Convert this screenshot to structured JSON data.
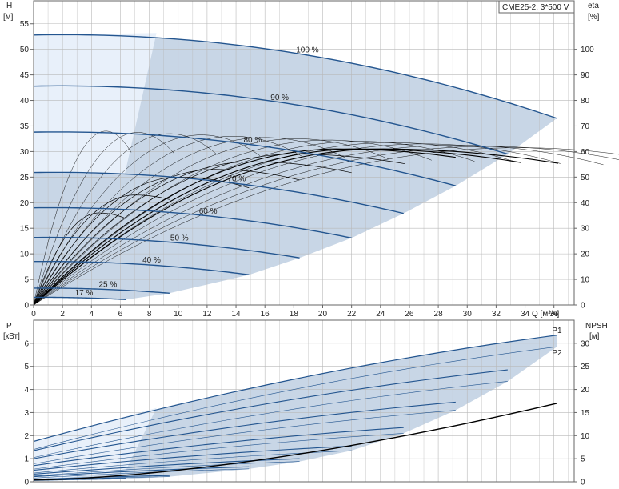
{
  "title_box": "CME25-2, 3*500 V",
  "colors": {
    "grid": "#b9b9b9",
    "frame": "#666666",
    "main_curve": "#23558f",
    "thin_curve": "#000000",
    "shade": "#c8d6e6",
    "shade_light": "#e8f0fa"
  },
  "chart_data": [
    {
      "type": "line",
      "name": "head-chart",
      "x_axis_label": "Q [м³/ч]",
      "y_left_label_top": "H",
      "y_left_label_unit": "[м]",
      "y_right_label_top": "eta",
      "y_right_label_unit": "[%]",
      "xlim": [
        0,
        37.4
      ],
      "ylim_left": [
        0,
        59.5
      ],
      "ylim_right": [
        0,
        119
      ],
      "x_ticks": [
        0,
        2,
        4,
        6,
        8,
        10,
        12,
        14,
        16,
        18,
        20,
        22,
        24,
        26,
        28,
        30,
        32,
        34,
        36
      ],
      "y_left_ticks": [
        0,
        5,
        10,
        15,
        20,
        25,
        30,
        35,
        40,
        45,
        50,
        55
      ],
      "y_right_ticks": [
        0,
        10,
        20,
        30,
        40,
        50,
        60,
        70,
        80,
        90,
        100
      ],
      "speed_curves": [
        {
          "label": "100 %",
          "q_max": 36.2,
          "h0": 52.8,
          "h_end": 36.5
        },
        {
          "label": "90 %",
          "q_max": 32.8,
          "h0": 42.8,
          "h_end": 29.5
        },
        {
          "label": "80 %",
          "q_max": 29.2,
          "h0": 33.8,
          "h_end": 23.3
        },
        {
          "label": "70 %",
          "q_max": 25.6,
          "h0": 25.9,
          "h_end": 17.9
        },
        {
          "label": "60 %",
          "q_max": 22.0,
          "h0": 19.0,
          "h_end": 13.1
        },
        {
          "label": "50 %",
          "q_max": 18.4,
          "h0": 13.2,
          "h_end": 9.2
        },
        {
          "label": "40 %",
          "q_max": 14.9,
          "h0": 8.5,
          "h_end": 5.9
        },
        {
          "label": "25 %",
          "q_max": 9.4,
          "h0": 3.3,
          "h_end": 2.3
        },
        {
          "label": "17 %",
          "q_max": 6.4,
          "h0": 1.5,
          "h_end": 1.05
        }
      ],
      "efficiency_curves": [
        {
          "q_max": 36.3,
          "eta_max": 61,
          "q_peak": 24
        },
        {
          "q_max": 33.7,
          "eta_max": 61,
          "q_peak": 22.5
        },
        {
          "q_max": 29.2,
          "eta_max": 61,
          "q_peak": 21
        },
        {
          "q_max": 25.7,
          "eta_max": 59,
          "q_peak": 18
        },
        {
          "q_max": 22.0,
          "eta_max": 56,
          "q_peak": 15
        },
        {
          "q_max": 18.4,
          "eta_max": 53,
          "q_peak": 12.5
        },
        {
          "q_max": 14.9,
          "eta_max": 50,
          "q_peak": 10
        },
        {
          "q_max": 9.4,
          "eta_max": 43,
          "q_peak": 7
        },
        {
          "q_max": 6.4,
          "eta_max": 36,
          "q_peak": 4.5
        }
      ]
    },
    {
      "type": "line",
      "name": "power-chart",
      "y_left_label_top": "P",
      "y_left_label_unit": "[кВт]",
      "y_right_label_top": "NPSH",
      "y_right_label_unit": "[м]",
      "xlim": [
        0,
        37.4
      ],
      "ylim_left": [
        0,
        7
      ],
      "ylim_right": [
        0,
        35
      ],
      "y_left_ticks": [
        0,
        1,
        2,
        3,
        4,
        5,
        6
      ],
      "y_right_ticks": [
        0,
        5,
        10,
        15,
        20,
        25,
        30
      ],
      "series_labels": [
        "P1",
        "P2"
      ],
      "p1_curves": [
        {
          "q_max": 36.2,
          "p0": 1.75,
          "p_end": 6.35
        },
        {
          "q_max": 32.8,
          "p0": 1.35,
          "p_end": 4.85
        },
        {
          "q_max": 29.2,
          "p0": 1.0,
          "p_end": 3.45
        },
        {
          "q_max": 25.6,
          "p0": 0.7,
          "p_end": 2.35
        },
        {
          "q_max": 22.0,
          "p0": 0.5,
          "p_end": 1.55
        },
        {
          "q_max": 18.4,
          "p0": 0.33,
          "p_end": 1.0
        },
        {
          "q_max": 14.9,
          "p0": 0.22,
          "p_end": 0.65
        },
        {
          "q_max": 9.4,
          "p0": 0.1,
          "p_end": 0.27
        },
        {
          "q_max": 6.4,
          "p0": 0.07,
          "p_end": 0.15
        }
      ],
      "p2_curves": [
        {
          "q_max": 36.2,
          "p0": 1.4,
          "p_end": 5.85
        },
        {
          "q_max": 32.8,
          "p0": 1.05,
          "p_end": 4.35
        },
        {
          "q_max": 29.2,
          "p0": 0.78,
          "p_end": 3.1
        },
        {
          "q_max": 25.6,
          "p0": 0.55,
          "p_end": 2.1
        },
        {
          "q_max": 22.0,
          "p0": 0.38,
          "p_end": 1.35
        },
        {
          "q_max": 18.4,
          "p0": 0.25,
          "p_end": 0.88
        },
        {
          "q_max": 14.9,
          "p0": 0.16,
          "p_end": 0.56
        },
        {
          "q_max": 9.4,
          "p0": 0.07,
          "p_end": 0.22
        },
        {
          "q_max": 6.4,
          "p0": 0.05,
          "p_end": 0.12
        }
      ],
      "npsh_curve": {
        "q_max": 36.2,
        "npsh_end": 17.0
      }
    }
  ]
}
